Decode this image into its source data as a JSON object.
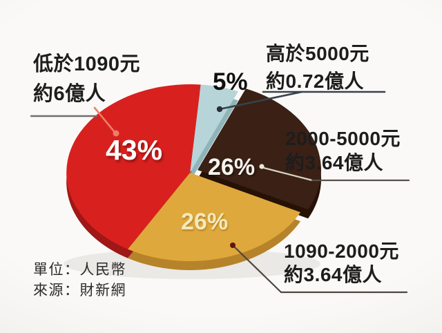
{
  "chart_data": {
    "type": "pie",
    "style": "3d-exploded",
    "unit_note": "單位：人民幣",
    "source_note": "來源：財新網",
    "legend_position": "callout-labels",
    "slices": [
      {
        "id": "above-5000",
        "range": "高於5000元",
        "population": "約0.72億人",
        "percent": "5%",
        "value": 5,
        "color": "#b7d5d9",
        "rim_color": "#8fb4ba",
        "exploded": false
      },
      {
        "id": "2000-5000",
        "range": "2000-5000元",
        "population": "約3.64億人",
        "percent": "26%",
        "value": 26,
        "color": "#3a2015",
        "rim_color": "#261107",
        "exploded": true
      },
      {
        "id": "1090-2000",
        "range": "1090-2000元",
        "population": "約3.64億人",
        "percent": "26%",
        "value": 26,
        "color": "#dfa83c",
        "rim_color": "#b6832a",
        "exploded": false
      },
      {
        "id": "below-1090",
        "range": "低於1090元",
        "population": "約6億人",
        "percent": "43%",
        "value": 43,
        "color": "#d8211e",
        "rim_color": "#9f1717",
        "exploded": false
      }
    ]
  }
}
